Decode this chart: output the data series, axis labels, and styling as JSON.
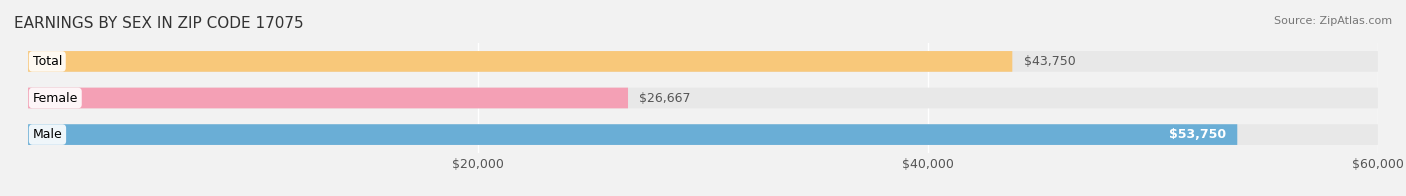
{
  "title": "EARNINGS BY SEX IN ZIP CODE 17075",
  "source": "Source: ZipAtlas.com",
  "categories": [
    "Male",
    "Female",
    "Total"
  ],
  "values": [
    53750,
    26667,
    43750
  ],
  "bar_colors": [
    "#6aaed6",
    "#f4a0b5",
    "#f8c87a"
  ],
  "label_colors": [
    "white",
    "black",
    "black"
  ],
  "label_inside": [
    true,
    false,
    false
  ],
  "value_labels": [
    "$53,750",
    "$26,667",
    "$43,750"
  ],
  "xmin": 0,
  "xmax": 60000,
  "xticks": [
    20000,
    40000,
    60000
  ],
  "xtick_labels": [
    "$20,000",
    "$40,000",
    "$60,000"
  ],
  "bar_height": 0.55,
  "background_color": "#f2f2f2",
  "bar_background_color": "#e8e8e8",
  "title_fontsize": 11,
  "tick_fontsize": 9,
  "label_fontsize": 9,
  "value_fontsize": 9
}
